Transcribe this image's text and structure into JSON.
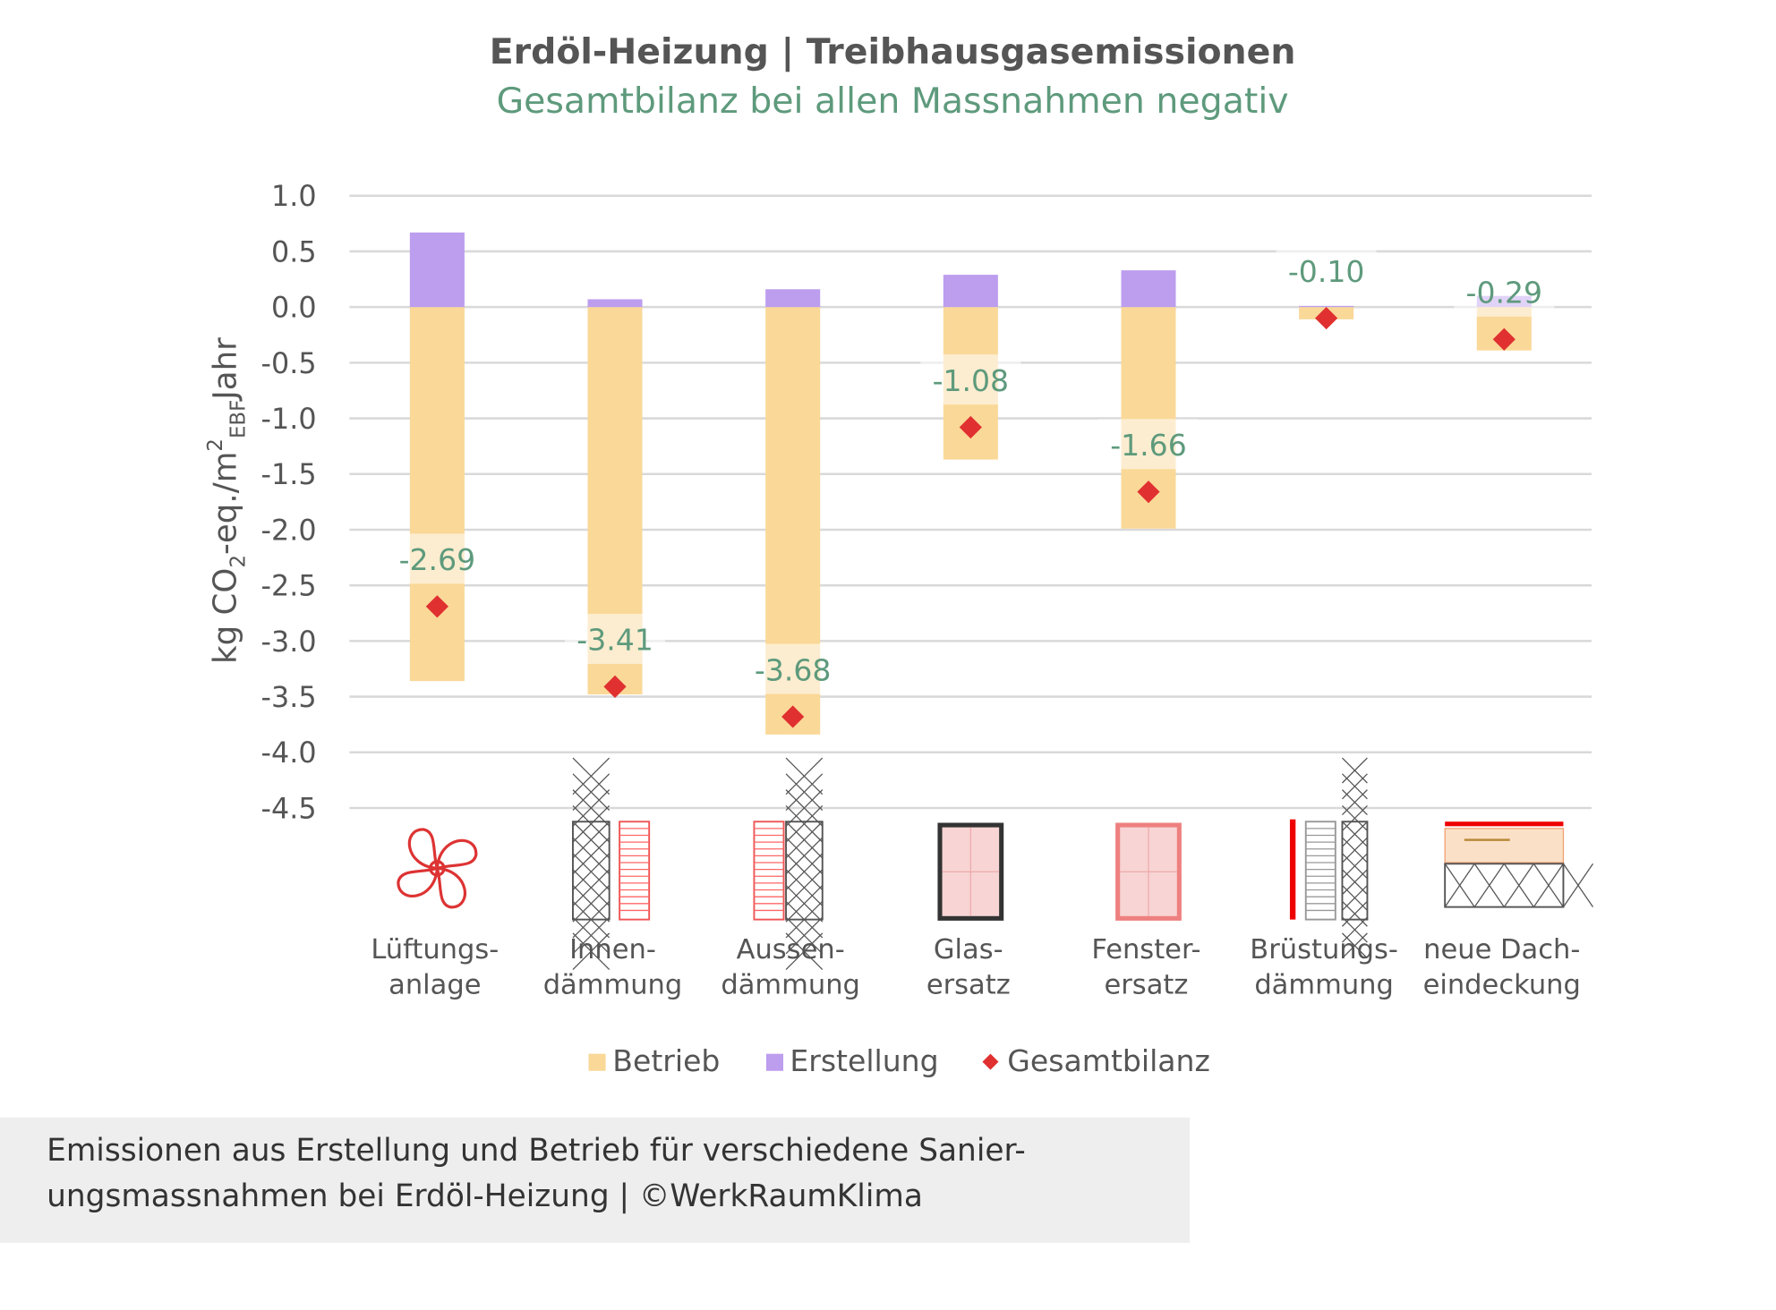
{
  "title": "Erdöl-Heizung | Treibhausgasemissionen",
  "subtitle": "Gesamtbilanz bei allen Massnahmen negativ",
  "caption": {
    "line1": "Emissionen aus Erstellung und Betrieb für verschiedene Sanier-",
    "line2": "ungsmassnahmen bei Erdöl-Heizung | ©WerkRaumKlima"
  },
  "colors": {
    "betrieb": "#fad898",
    "erstellung": "#bc9dee",
    "gesamtbilanz": "#e03030",
    "label": "#5e9a7c",
    "grid": "#d9d9d9"
  },
  "chart_data": {
    "type": "bar",
    "stacked": true,
    "title": "Erdöl-Heizung | Treibhausgasemissionen",
    "subtitle": "Gesamtbilanz bei allen Massnahmen negativ",
    "ylabel": "kg CO2-eq./m2EBFJahr",
    "ylabel_parts": {
      "a": "kg CO",
      "sub1": "2",
      "b": "-eq./m",
      "sup": "2",
      "sub2": "EBF",
      "c": "Jahr"
    },
    "ylim": [
      -4.5,
      1.0
    ],
    "yticks": [
      "1.0",
      "0.5",
      "0.0",
      "-0.5",
      "-1.0",
      "-1.5",
      "-2.0",
      "-2.5",
      "-3.0",
      "-3.5",
      "-4.0",
      "-4.5"
    ],
    "grid": true,
    "legend_position": "bottom",
    "categories": [
      [
        "Lüftungs-",
        "anlage"
      ],
      [
        "Innen-",
        "dämmung"
      ],
      [
        "Aussen-",
        "dämmung"
      ],
      [
        "Glas-",
        "ersatz"
      ],
      [
        "Fenster-",
        "ersatz"
      ],
      [
        "Brüstungs-",
        "dämmung"
      ],
      [
        "neue Dach-",
        "eindeckung"
      ]
    ],
    "category_icons": [
      "fan-icon",
      "interior-insulation-icon",
      "exterior-insulation-icon",
      "glass-replacement-icon",
      "window-replacement-icon",
      "parapet-insulation-icon",
      "roof-covering-icon"
    ],
    "series": [
      {
        "name": "Betrieb",
        "type": "bar",
        "values": [
          -3.36,
          -3.48,
          -3.84,
          -1.37,
          -1.99,
          -0.11,
          -0.39
        ]
      },
      {
        "name": "Erstellung",
        "type": "bar",
        "values": [
          0.67,
          0.07,
          0.16,
          0.29,
          0.33,
          0.01,
          0.1
        ]
      },
      {
        "name": "Gesamtbilanz",
        "type": "marker",
        "values": [
          -2.69,
          -3.41,
          -3.68,
          -1.08,
          -1.66,
          -0.1,
          -0.29
        ]
      }
    ],
    "data_labels": [
      "-2.69",
      "-3.41",
      "-3.68",
      "-1.08",
      "-1.66",
      "-0.10",
      "-0.29"
    ]
  }
}
